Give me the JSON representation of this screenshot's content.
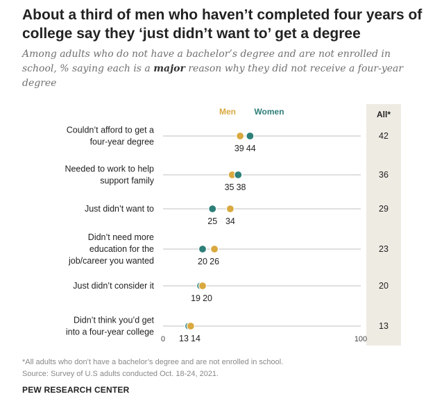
{
  "chart_data": {
    "type": "dot",
    "title": "About a third of men who haven’t completed four years of college say they ‘just didn’t want to’ get a degree",
    "subtitle_before": "Among adults who do not have a bachelor’s degree and are not enrolled in school, % saying each is a ",
    "subtitle_emphasis": "major",
    "subtitle_after": " reason why they did not receive a four-year degree",
    "xlim": [
      0,
      100
    ],
    "axis_min_label": "0",
    "axis_max_label": "100",
    "categories": [
      "Couldn’t afford to get a|four-year degree",
      "Needed to work to help|support family",
      "Just didn’t want to",
      "Didn’t need more|education for the|job/career you wanted",
      "Just didn’t consider it",
      "Didn’t think you’d get|into a four-year college"
    ],
    "series": [
      {
        "name": "Men",
        "color": "#D9A93F",
        "values": [
          39,
          35,
          34,
          26,
          20,
          14
        ]
      },
      {
        "name": "Women",
        "color": "#2D7F78",
        "values": [
          44,
          38,
          25,
          20,
          19,
          13
        ]
      }
    ],
    "all_label": "All*",
    "all_values": [
      42,
      36,
      29,
      23,
      20,
      13
    ]
  },
  "footnote": "*All adults who don’t have a bachelor’s degree and are not enrolled in school.",
  "source": "Source: Survey of U.S adults conducted Oct. 18-24, 2021.",
  "brand": "PEW RESEARCH CENTER"
}
